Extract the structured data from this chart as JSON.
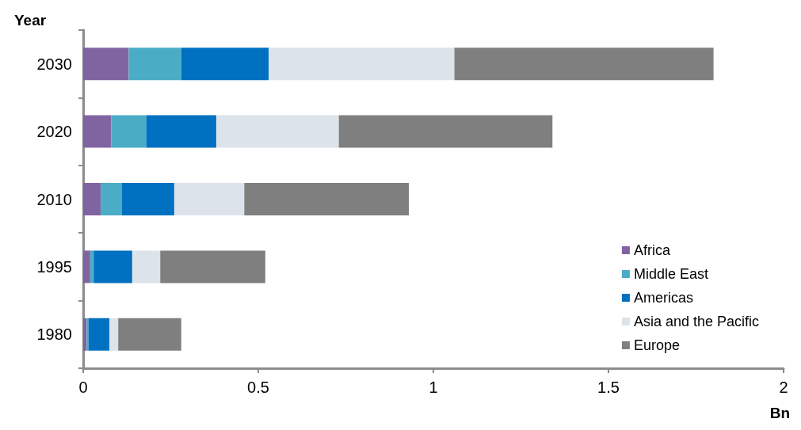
{
  "chart_data": {
    "type": "bar",
    "orientation": "horizontal",
    "stacked": true,
    "ylabel": "Year",
    "xlabel": "Bn",
    "categories": [
      "2030",
      "2020",
      "2010",
      "1995",
      "1980"
    ],
    "series": [
      {
        "name": "Africa",
        "color": "#8064a2",
        "values": [
          0.13,
          0.08,
          0.05,
          0.02,
          0.01
        ]
      },
      {
        "name": "Middle East",
        "color": "#4bacc6",
        "values": [
          0.15,
          0.1,
          0.06,
          0.01,
          0.005
        ]
      },
      {
        "name": "Americas",
        "color": "#0070c0",
        "values": [
          0.25,
          0.2,
          0.15,
          0.11,
          0.06
        ]
      },
      {
        "name": "Asia and the Pacific",
        "color": "#dde3ea",
        "values": [
          0.53,
          0.35,
          0.2,
          0.08,
          0.025
        ]
      },
      {
        "name": "Europe",
        "color": "#7f7f7f",
        "values": [
          0.74,
          0.61,
          0.47,
          0.3,
          0.18
        ]
      }
    ],
    "xlim": [
      0,
      2
    ],
    "xticks": [
      0,
      0.5,
      1,
      1.5,
      2
    ],
    "grid": false,
    "legend": "bottom right"
  }
}
